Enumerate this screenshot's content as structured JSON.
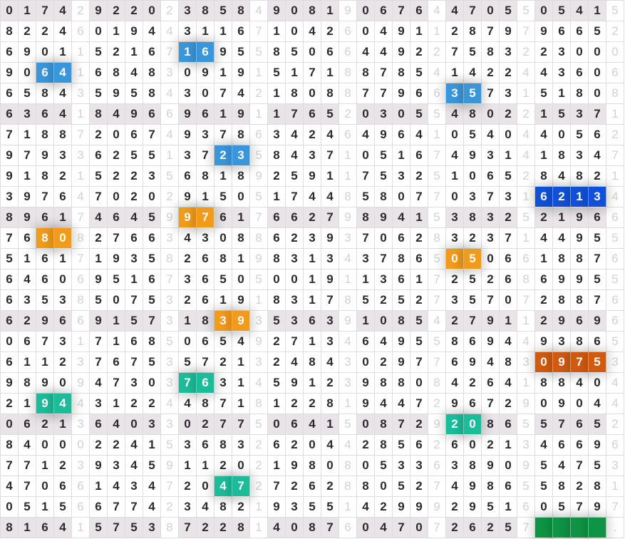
{
  "grid": {
    "rows": [
      "01742922023858490819067644705505415",
      "82246019443116710426049112879796652",
      "69011521671695585066449227583223000",
      "90641684830919151718878541422443606",
      "65843595843074218088779663573151808",
      "63641849669619117652030554802215371",
      "71887206749378634246496410540440562",
      "97933625513723584371051674931418347",
      "91821522356818925911753251065284821",
      "39764702029150517448580770373162134",
      "89617464599761766279894153832521966",
      "76808276634308862393706283237144955",
      "51617193582681983134378650506618876",
      "64606951673650500191136172526869955",
      "63538507532619183178525273570728876",
      "62966915731839353639108542791129696",
      "06731716850654927134649558694493865",
      "61123767535721324843029776948309753",
      "98909473037631459123988084264188404",
      "21944312244871812281944729672909044",
      "06213640330277506415087292086557652",
      "84000224153683262044285626021346696",
      "77123934591120219808053363890954753",
      "47066143472047272628805274986558281",
      "05156677423482193551429992951605797",
      "816415753872281408760470726257    ."
    ],
    "highlights": [
      {
        "row": 2,
        "col": 10,
        "len": 2,
        "color": "#3a96da"
      },
      {
        "row": 3,
        "col": 2,
        "len": 2,
        "color": "#3a96da"
      },
      {
        "row": 4,
        "col": 25,
        "len": 2,
        "color": "#3a96da"
      },
      {
        "row": 7,
        "col": 12,
        "len": 2,
        "color": "#3a96da"
      },
      {
        "row": 9,
        "col": 30,
        "len": 4,
        "color": "#1150d8"
      },
      {
        "row": 10,
        "col": 10,
        "len": 2,
        "color": "#f29a1a"
      },
      {
        "row": 11,
        "col": 2,
        "len": 2,
        "color": "#f29a1a"
      },
      {
        "row": 12,
        "col": 25,
        "len": 2,
        "color": "#f29a1a"
      },
      {
        "row": 15,
        "col": 12,
        "len": 2,
        "color": "#f29a1a"
      },
      {
        "row": 17,
        "col": 30,
        "len": 4,
        "color": "#d05a10"
      },
      {
        "row": 18,
        "col": 10,
        "len": 2,
        "color": "#1cbc9a"
      },
      {
        "row": 19,
        "col": 2,
        "len": 2,
        "color": "#1cbc9a"
      },
      {
        "row": 20,
        "col": 25,
        "len": 2,
        "color": "#1cbc9a"
      },
      {
        "row": 23,
        "col": 12,
        "len": 2,
        "color": "#1cbc9a"
      },
      {
        "row": 25,
        "col": 30,
        "len": 4,
        "color": "#0e9444"
      }
    ],
    "shaded_row_every": 5,
    "shade_color": "#e8e4e8"
  }
}
